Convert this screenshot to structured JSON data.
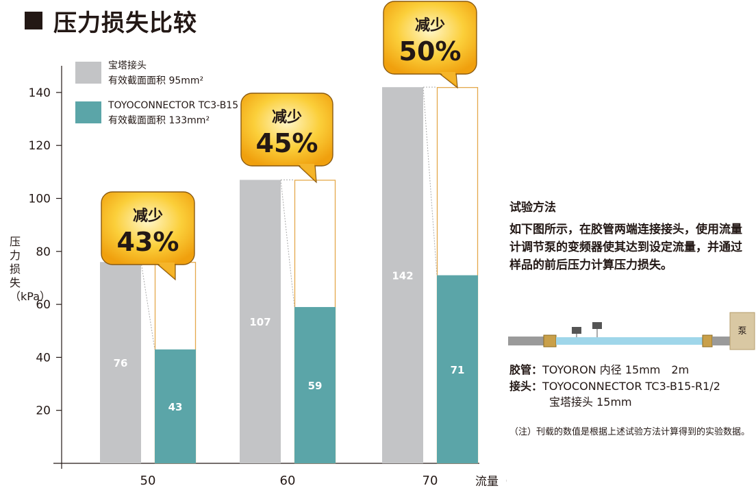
{
  "title": "压力损失比较",
  "chart_data": {
    "type": "bar",
    "categories": [
      "50",
      "60",
      "70"
    ],
    "series": [
      {
        "name": "宝塔接头 有效截面面积 95mm²",
        "values": [
          76,
          107,
          142
        ]
      },
      {
        "name": "TOYOCONNECTOR TC3-B15 有效截面面积 133mm²",
        "values": [
          43,
          59,
          71
        ]
      }
    ],
    "legend": [
      {
        "line1": "宝塔接头",
        "line2": "有效截面面积 95mm²",
        "color": "#c3c4c6"
      },
      {
        "line1": "TOYOCONNECTOR TC3-B15",
        "line2": "有效截面面积 133mm²",
        "color": "#5ba5a8"
      }
    ],
    "reduction_labels": [
      {
        "word": "减少",
        "pct": "43%"
      },
      {
        "word": "减少",
        "pct": "45%"
      },
      {
        "word": "减少",
        "pct": "50%"
      }
    ],
    "ylabel_lines": [
      "压",
      "力",
      "损",
      "失",
      "（kPa）"
    ],
    "xlabel": "流量（L/min）",
    "ylim": [
      0,
      150
    ],
    "yticks": [
      20,
      40,
      60,
      80,
      100,
      120,
      140
    ],
    "colors": {
      "gray": "#c3c4c6",
      "teal": "#5ba5a8",
      "outline": "#e4a84b",
      "callout": "#f6b21b"
    }
  },
  "method": {
    "heading": "试验方法",
    "description": "如下图所示，在胶管两端连接接头，使用流量计调节泵的变频器使其达到设定流量，并通过样品的前后压力计算压力损失。",
    "pump_label": "泵",
    "hose_label": "胶管：",
    "hose_value": "TOYORON 内径 15mm　2m",
    "fitting_label": "接头：",
    "fitting_value1": "TOYOCONNECTOR TC3-B15-R1/2",
    "fitting_value2": "宝塔接头 15mm",
    "note": "（注）刊载的数值是根据上述试验方法计算得到的实验数据。"
  }
}
